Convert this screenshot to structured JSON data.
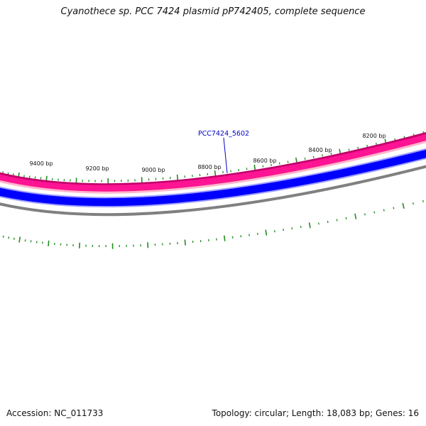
{
  "title": "Cyanothece sp. PCC 7424 plasmid pP742405, complete sequence",
  "footer": {
    "accession": "Accession: NC_011733",
    "summary": "Topology: circular; Length: 18,083 bp; Genes: 16"
  },
  "scale_labels": [
    {
      "bp": 8200,
      "text": "8200 bp"
    },
    {
      "bp": 8400,
      "text": "8400 bp"
    },
    {
      "bp": 8600,
      "text": "8600 bp"
    },
    {
      "bp": 8800,
      "text": "8800 bp"
    },
    {
      "bp": 9000,
      "text": "9000 bp"
    },
    {
      "bp": 9200,
      "text": "9200 bp"
    },
    {
      "bp": 9400,
      "text": "9400 bp"
    }
  ],
  "gene_label": {
    "text": "PCC7424_5602"
  },
  "colors": {
    "forward_track": "#ff1493",
    "forward_track_edge": "#c0006a",
    "forward_track_light": "#ffb6cc",
    "reverse_track": "#0000ff",
    "reverse_track_light": "#a0a0ff",
    "backbone": "#808080",
    "ticks": "#228b22",
    "gene_label": "#0000cc",
    "gene_pointer": "#0000cc"
  }
}
